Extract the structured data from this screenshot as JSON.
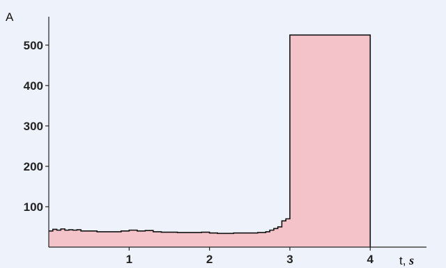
{
  "chart_data": {
    "type": "area",
    "ylabel": "A",
    "xlabel_prefix": "t, ",
    "xlabel_unit": "s",
    "xlim": [
      0,
      4.7
    ],
    "ylim": [
      0,
      560
    ],
    "x_ticks": [
      "1",
      "2",
      "3",
      "4"
    ],
    "y_ticks": [
      "100",
      "200",
      "300",
      "400",
      "500"
    ],
    "fill_color": "#f4c2c9",
    "line_color": "#111111",
    "series": [
      {
        "x": [
          0,
          0.05,
          0.1,
          0.15,
          0.2,
          0.25,
          0.3,
          0.35,
          0.4,
          0.5,
          0.6,
          0.7,
          0.8,
          0.9,
          1.0,
          1.1,
          1.2,
          1.3,
          1.4,
          1.5,
          1.6,
          1.7,
          1.8,
          1.9,
          2.0,
          2.1,
          2.2,
          2.3,
          2.4,
          2.5,
          2.6,
          2.7,
          2.75,
          2.8,
          2.85,
          2.9,
          2.95,
          3.0,
          3.0,
          4.0,
          4.0
        ],
        "y": [
          40,
          44,
          42,
          45,
          42,
          43,
          42,
          43,
          40,
          40,
          38,
          38,
          38,
          40,
          42,
          40,
          41,
          38,
          37,
          37,
          36,
          36,
          36,
          37,
          35,
          34,
          34,
          35,
          35,
          35,
          36,
          38,
          42,
          46,
          50,
          65,
          70,
          70,
          525,
          525,
          0
        ]
      }
    ]
  }
}
